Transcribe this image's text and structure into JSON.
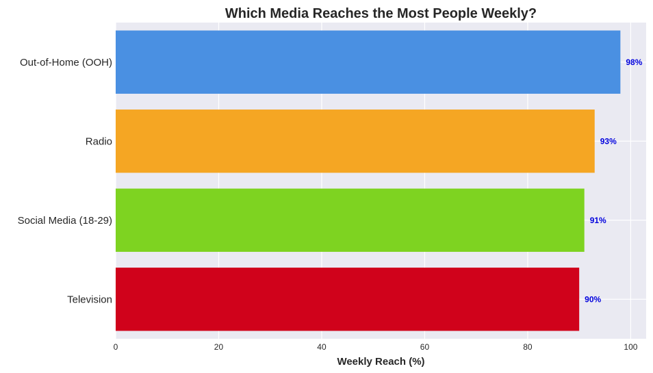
{
  "chart_data": {
    "type": "bar",
    "orientation": "horizontal",
    "title": "Which Media Reaches the Most People Weekly?",
    "xlabel": "Weekly Reach (%)",
    "ylabel": "",
    "xlim": [
      0,
      103
    ],
    "xticks": [
      "0",
      "20",
      "40",
      "60",
      "80",
      "100"
    ],
    "grid": true,
    "categories": [
      "Out-of-Home (OOH)",
      "Radio",
      "Social Media (18-29)",
      "Television"
    ],
    "values": [
      98,
      93,
      91,
      90
    ],
    "data_labels": [
      "98%",
      "93%",
      "91%",
      "90%"
    ],
    "colors": [
      "#4a90e2",
      "#f5a623",
      "#7ed321",
      "#d0021b"
    ]
  }
}
